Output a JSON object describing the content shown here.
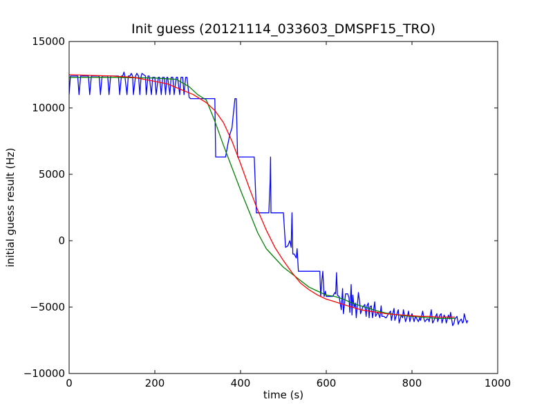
{
  "chart_data": {
    "type": "line",
    "title": "Init guess (20121114_033603_DMSPF15_TRO)",
    "xlabel": "time (s)",
    "ylabel": "initial guess result (Hz)",
    "xlim": [
      0,
      1000
    ],
    "ylim": [
      -10000,
      15000
    ],
    "x_ticks": [
      0,
      200,
      400,
      600,
      800,
      1000
    ],
    "y_ticks": [
      -10000,
      -5000,
      0,
      5000,
      10000,
      15000
    ],
    "x_tick_labels": [
      "0",
      "200",
      "400",
      "600",
      "800",
      "1000"
    ],
    "y_tick_labels": [
      "−10000",
      "−5000",
      "0",
      "5000",
      "10000",
      "15000"
    ],
    "grid": false,
    "legend": "none",
    "series": [
      {
        "color": "#0000ff",
        "x": [
          0,
          3,
          5,
          20,
          23,
          27,
          30,
          45,
          48,
          52,
          55,
          70,
          73,
          77,
          80,
          90,
          93,
          97,
          100,
          115,
          118,
          122,
          125,
          128,
          130,
          135,
          138,
          142,
          145,
          148,
          150,
          155,
          158,
          162,
          165,
          168,
          170,
          178,
          180,
          184,
          187,
          192,
          195,
          200,
          203,
          208,
          211,
          215,
          218,
          222,
          225,
          228,
          230,
          235,
          238,
          242,
          245,
          250,
          253,
          258,
          261,
          265,
          268,
          272,
          275,
          280,
          283,
          290,
          300,
          310,
          340,
          342,
          345,
          352,
          355,
          360,
          365,
          370,
          375,
          380,
          383,
          387,
          390,
          393,
          396,
          400,
          405,
          420,
          425,
          432,
          437,
          440,
          445,
          458,
          462,
          466,
          469,
          470,
          471,
          472,
          475,
          478,
          480,
          490,
          495,
          500,
          505,
          510,
          515,
          518,
          520,
          522,
          525,
          530,
          532,
          535,
          537,
          540,
          545,
          550,
          555,
          560,
          565,
          570,
          580,
          585,
          587,
          590,
          592,
          595,
          598,
          600,
          605,
          610,
          615,
          620,
          622,
          624,
          626,
          630,
          635,
          638,
          640,
          645,
          650,
          653,
          655,
          658,
          660,
          662,
          665,
          668,
          670,
          675,
          678,
          680,
          685,
          690,
          693,
          695,
          698,
          700,
          702,
          705,
          708,
          710,
          713,
          715,
          720,
          722,
          725,
          728,
          730,
          735,
          738,
          740,
          745,
          750,
          752,
          755,
          758,
          760,
          765,
          768,
          770,
          775,
          778,
          780,
          785,
          790,
          792,
          795,
          798,
          800,
          805,
          808,
          810,
          815,
          818,
          820,
          825,
          828,
          830,
          835,
          838,
          840,
          845,
          848,
          850,
          855,
          858,
          860,
          865,
          868,
          870,
          875,
          878,
          880,
          885,
          888,
          890,
          895,
          898,
          900,
          905,
          908,
          910,
          915,
          918,
          920,
          922,
          925,
          928,
          930
        ],
        "y": [
          11000,
          12400,
          12400,
          12400,
          11000,
          12400,
          12400,
          12400,
          11000,
          12400,
          12400,
          12400,
          11000,
          12400,
          12400,
          12400,
          11000,
          12400,
          12400,
          12400,
          11000,
          12400,
          12400,
          12700,
          12400,
          11000,
          12400,
          12400,
          12600,
          12400,
          11000,
          12400,
          12600,
          12400,
          11000,
          12400,
          12600,
          12400,
          11000,
          12400,
          12400,
          11000,
          12300,
          12300,
          11000,
          12300,
          12300,
          11000,
          12300,
          12300,
          11000,
          12300,
          12300,
          11000,
          12300,
          12300,
          11000,
          12300,
          12300,
          11000,
          12300,
          12300,
          11000,
          12300,
          12300,
          10800,
          10700,
          10700,
          10700,
          10700,
          10700,
          6300,
          6300,
          6300,
          6300,
          6300,
          6300,
          7200,
          8000,
          8500,
          9500,
          10700,
          10700,
          6300,
          6300,
          6300,
          6300,
          6300,
          6300,
          6300,
          2100,
          2100,
          2100,
          2100,
          2100,
          2100,
          4500,
          6300,
          2100,
          2100,
          2100,
          2100,
          2100,
          2100,
          2100,
          2100,
          -500,
          -400,
          0,
          -500,
          2100,
          -1000,
          -1000,
          -1300,
          -600,
          -2300,
          -2300,
          -2300,
          -2300,
          -2300,
          -2300,
          -2300,
          -2300,
          -2300,
          -2300,
          -2300,
          -4200,
          -2900,
          -2300,
          -4200,
          -3800,
          -4200,
          -4200,
          -4200,
          -4200,
          -3900,
          -4000,
          -2400,
          -4100,
          -4200,
          -5200,
          -3600,
          -5500,
          -4000,
          -4000,
          -4300,
          -5400,
          -3300,
          -5600,
          -4100,
          -5000,
          -4700,
          -5800,
          -3900,
          -4700,
          -5500,
          -5000,
          -4800,
          -5700,
          -4900,
          -4700,
          -5800,
          -5000,
          -4900,
          -5800,
          -5300,
          -4600,
          -5700,
          -5400,
          -5500,
          -5800,
          -4900,
          -5700,
          -5700,
          -5800,
          -5800,
          -5500,
          -5300,
          -6000,
          -5500,
          -5100,
          -6000,
          -5500,
          -5200,
          -6200,
          -5600,
          -5800,
          -5200,
          -6100,
          -5600,
          -5300,
          -6100,
          -5700,
          -5500,
          -6100,
          -5700,
          -5800,
          -6100,
          -5800,
          -6000,
          -5300,
          -5900,
          -6100,
          -5900,
          -5900,
          -6100,
          -5200,
          -6200,
          -6100,
          -5700,
          -5500,
          -6100,
          -5600,
          -5500,
          -6200,
          -5600,
          -5800,
          -6200,
          -5600,
          -5900,
          -5400,
          -6400,
          -6200,
          -5900,
          -5700,
          -6300,
          -6100,
          -5900,
          -6200,
          -6100,
          -5500,
          -5900,
          -6200,
          -6000
        ]
      },
      {
        "color": "#008000",
        "x": [
          0,
          100,
          200,
          250,
          280,
          300,
          320,
          340,
          360,
          380,
          400,
          420,
          440,
          460,
          480,
          500,
          520,
          540,
          560,
          580,
          600,
          620,
          640,
          660,
          680,
          700,
          720,
          740,
          760,
          780,
          800,
          820,
          840,
          860,
          880,
          900
        ],
        "y": [
          12300,
          12300,
          12250,
          12150,
          11600,
          11000,
          10600,
          9000,
          7200,
          5500,
          3800,
          2200,
          600,
          -600,
          -1300,
          -2000,
          -2500,
          -3000,
          -3500,
          -3800,
          -4100,
          -4200,
          -4400,
          -4700,
          -4900,
          -5100,
          -5300,
          -5450,
          -5550,
          -5650,
          -5700,
          -5750,
          -5800,
          -5850,
          -5850,
          -5850
        ]
      },
      {
        "color": "#ff0000",
        "x": [
          0,
          50,
          100,
          150,
          200,
          230,
          260,
          290,
          320,
          340,
          360,
          380,
          400,
          420,
          440,
          460,
          480,
          500,
          520,
          540,
          560,
          580,
          600,
          620,
          640,
          660,
          680,
          700,
          720,
          740,
          760,
          780,
          800,
          820,
          840,
          860,
          880,
          900
        ],
        "y": [
          12500,
          12450,
          12400,
          12300,
          12000,
          11800,
          11400,
          11000,
          10400,
          9800,
          8900,
          7500,
          5800,
          4000,
          2300,
          800,
          -500,
          -1500,
          -2400,
          -3200,
          -3700,
          -4100,
          -4400,
          -4600,
          -4800,
          -5000,
          -5200,
          -5300,
          -5400,
          -5500,
          -5550,
          -5600,
          -5650,
          -5700,
          -5700,
          -5750,
          -5750,
          -5750
        ]
      }
    ]
  }
}
